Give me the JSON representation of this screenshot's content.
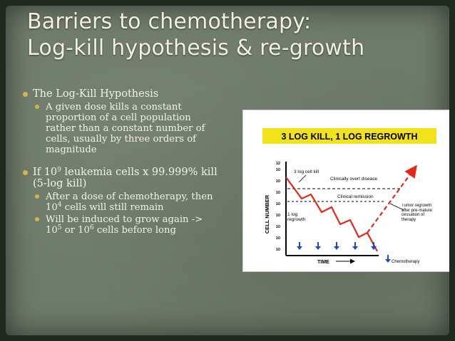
{
  "title": {
    "line1": "Barriers to chemotherapy:",
    "line2": "Log-kill hypothesis & re-growth"
  },
  "bullets": {
    "b1_text": "The Log-Kill Hypothesis",
    "b1_sub": "A given dose kills a constant proportion of a cell population rather than a constant number of cells, usually by three orders of magnitude",
    "b2_pre": "If 10",
    "b2_sup": "9",
    "b2_post": " leukemia cells x 99.999% kill  (5-log kill)",
    "b2_sub1_pre": "After a dose of chemotherapy, then 10",
    "b2_sub1_sup": "4",
    "b2_sub1_post": " cells will still remain",
    "b2_sub2_pre": "Will be induced to grow again -> 10",
    "b2_sub2_sup1": "5",
    "b2_sub2_mid": "  or 10",
    "b2_sub2_sup2": "6",
    "b2_sub2_post": " cells before long"
  },
  "figure": {
    "banner": "3 LOG KILL, 1 LOG REGROWTH",
    "ylabel": "CELL NUMBER",
    "xlabel": "TIME",
    "legend_label": "Chemotherapy",
    "annot_3log": "3 log cell kill",
    "annot_clinical": "Clinically overt disease",
    "annot_remission": "Clinical remission",
    "annot_1log": "1 log regrowth",
    "annot_tumor": "Tumor regrowth after pre-mature cessation of therapy",
    "yticks": [
      "12",
      "10",
      "10",
      "10",
      "10",
      "10",
      "10",
      "10",
      "10"
    ],
    "banner_color": "#f2e21b",
    "line_color": "#e0291b",
    "arrow_color": "#1c49c9"
  }
}
